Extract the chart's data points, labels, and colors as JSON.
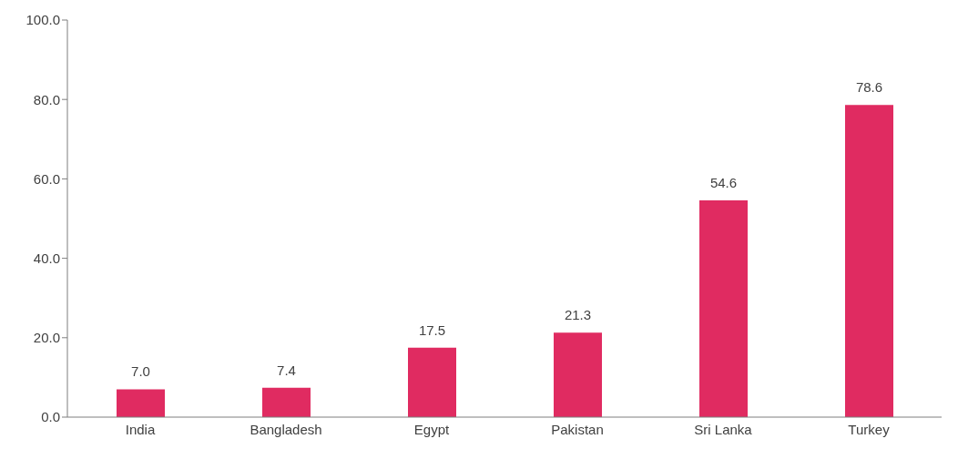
{
  "chart_data": {
    "type": "bar",
    "categories": [
      "India",
      "Bangladesh",
      "Egypt",
      "Pakistan",
      "Sri Lanka",
      "Turkey"
    ],
    "values": [
      7.0,
      7.4,
      17.5,
      21.3,
      54.6,
      78.6
    ],
    "color": "#e02b61",
    "ylim": [
      0,
      100
    ],
    "yticks": [
      {
        "value": 0,
        "label": "0.0"
      },
      {
        "value": 20,
        "label": "20.0"
      },
      {
        "value": 40,
        "label": "40.0"
      },
      {
        "value": 60,
        "label": "60.0"
      },
      {
        "value": 80,
        "label": "80.0"
      },
      {
        "value": 100,
        "label": "100.0"
      }
    ],
    "value_labels": [
      "7.0",
      "7.4",
      "17.5",
      "21.3",
      "54.6",
      "78.6"
    ],
    "grid": false,
    "legend": false
  }
}
